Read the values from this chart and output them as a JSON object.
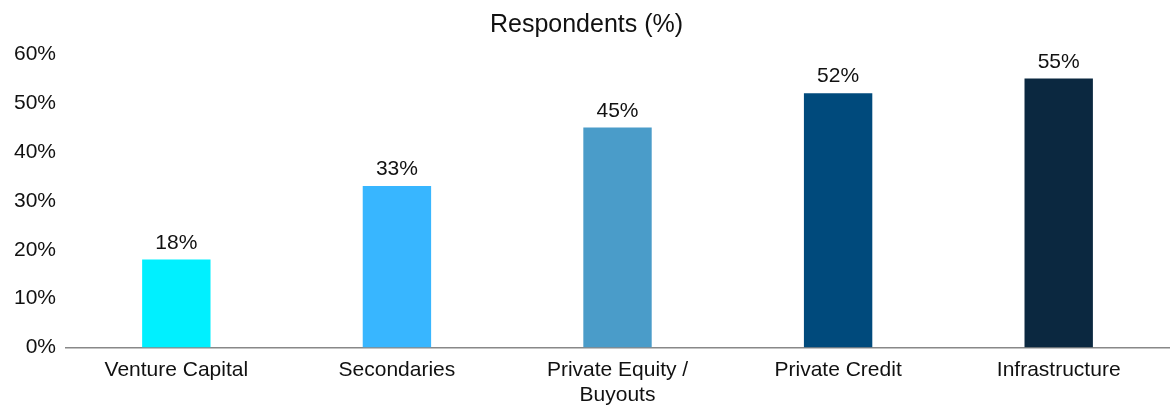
{
  "chart_data": {
    "type": "bar",
    "title": "Respondents (%)",
    "categories": [
      "Venture Capital",
      "Secondaries",
      "Private Equity / Buyouts",
      "Private Credit",
      "Infrastructure"
    ],
    "values": [
      18,
      33,
      45,
      52,
      55
    ],
    "colors": [
      "#00f0ff",
      "#38b6ff",
      "#4a9cc9",
      "#004a7c",
      "#0b2840"
    ],
    "value_labels": [
      "18%",
      "33%",
      "45%",
      "52%",
      "55%"
    ],
    "ylim": [
      0,
      60
    ],
    "yticks": [
      {
        "value": 0,
        "label": "0%"
      },
      {
        "value": 10,
        "label": "10%"
      },
      {
        "value": 20,
        "label": "20%"
      },
      {
        "value": 30,
        "label": "30%"
      },
      {
        "value": 40,
        "label": "40%"
      },
      {
        "value": 50,
        "label": "50%"
      },
      {
        "value": 60,
        "label": "60%"
      }
    ],
    "grid": false,
    "legend": false
  }
}
